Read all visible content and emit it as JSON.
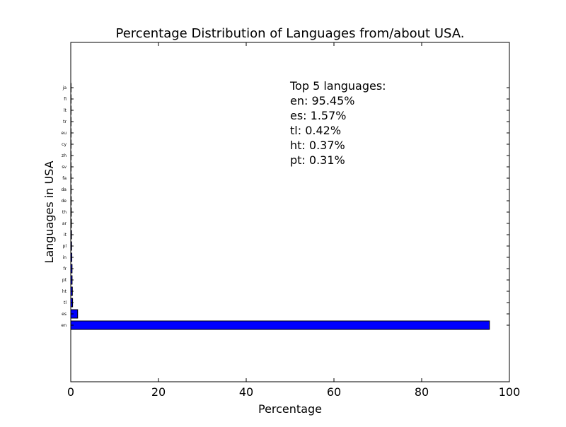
{
  "chart_data": {
    "type": "bar",
    "orientation": "horizontal",
    "title": "Percentage Distribution of Languages from/about USA.",
    "xlabel": "Percentage",
    "ylabel": "Languages in USA",
    "xlim": [
      0,
      100
    ],
    "x_ticks": [
      "0",
      "20",
      "40",
      "60",
      "80",
      "100"
    ],
    "categories": [
      "en",
      "es",
      "tl",
      "ht",
      "pt",
      "fr",
      "in",
      "pl",
      "it",
      "ar",
      "th",
      "de",
      "da",
      "fa",
      "sv",
      "zh",
      "cy",
      "eu",
      "tr",
      "lt",
      "fi",
      "ja"
    ],
    "values": [
      95.45,
      1.57,
      0.42,
      0.37,
      0.31,
      0.3,
      0.25,
      0.2,
      0.18,
      0.15,
      0.13,
      0.11,
      0.1,
      0.08,
      0.07,
      0.05,
      0.04,
      0.03,
      0.03,
      0.02,
      0.02,
      0.01
    ],
    "bar_color": "#0000ff",
    "grid": false,
    "annotation": {
      "lines": [
        "Top 5 languages:",
        "en: 95.45%",
        "es: 1.57%",
        "tl: 0.42%",
        "ht: 0.37%",
        "pt: 0.31%"
      ]
    }
  }
}
